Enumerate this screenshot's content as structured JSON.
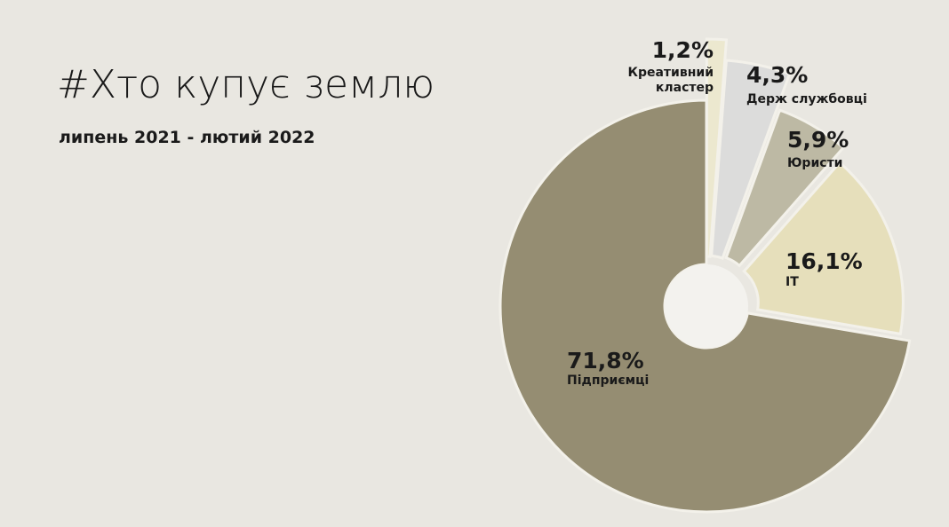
{
  "chart_data": {
    "type": "pie",
    "title": "#Хто купує землю",
    "subtitle": "липень 2021 - лютий 2022",
    "categories": [
      "Креативний кластер",
      "Держ службовці",
      "Юристи",
      "IT",
      "Підприємці"
    ],
    "values": [
      1.2,
      4.3,
      5.9,
      16.1,
      71.8
    ],
    "value_labels": [
      "1,2%",
      "4,3%",
      "5,9%",
      "16,1%",
      "71,8%"
    ],
    "colors": [
      "#ece8cf",
      "#dcdcdb",
      "#bdb9a4",
      "#e6dfbb",
      "#958d72"
    ]
  }
}
